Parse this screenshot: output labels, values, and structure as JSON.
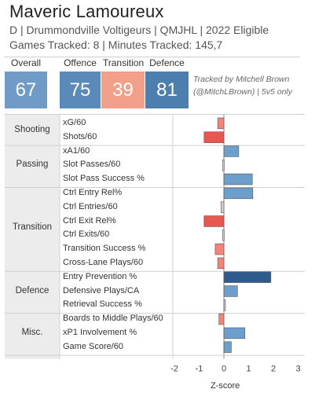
{
  "header": {
    "title": "Maveric Lamoureux",
    "subtitle": "D | Drummondville Voltigeurs | QMJHL | 2022 Eligible",
    "games_line": "Games Tracked: 8 | Minutes Tracked: 145,7"
  },
  "scores": {
    "overall": {
      "label": "Overall",
      "value": "67",
      "color": "#6f9bc6"
    },
    "offence": {
      "label": "Offence",
      "value": "75",
      "color": "#5a8ab8"
    },
    "transition": {
      "label": "Transition",
      "value": "39",
      "color": "#f3a08a"
    },
    "defence": {
      "label": "Defence",
      "value": "81",
      "color": "#4d7fae"
    }
  },
  "note": {
    "line1": "Tracked by Mitchell Brown",
    "line2": "(@MitchLBrown) | 5v5 only"
  },
  "chart_data": {
    "type": "bar",
    "orientation": "horizontal",
    "xlabel": "Z-score",
    "xlim": [
      -2.3,
      3.1
    ],
    "xticks": [
      "-2",
      "-1",
      "0",
      "1",
      "2",
      "3"
    ],
    "groups": [
      {
        "name": "Shooting",
        "metrics": [
          {
            "label": "xG/60",
            "value": -0.25
          },
          {
            "label": "Shots/60",
            "value": -0.8
          }
        ]
      },
      {
        "name": "Passing",
        "metrics": [
          {
            "label": "xA1/60",
            "value": 0.6
          },
          {
            "label": "Slot Passes/60",
            "value": -0.05
          },
          {
            "label": "Slot Pass Success %",
            "value": 1.15
          }
        ]
      },
      {
        "name": "Transition",
        "metrics": [
          {
            "label": "Ctrl Entry Rel%",
            "value": 1.17
          },
          {
            "label": "Ctrl Entries/60",
            "value": -0.12
          },
          {
            "label": "Ctrl Exit Rel%",
            "value": -0.8
          },
          {
            "label": "Ctrl Exits/60",
            "value": -0.05
          },
          {
            "label": "Transition Success %",
            "value": -0.35
          },
          {
            "label": "Cross-Lane Plays/60",
            "value": -0.25
          }
        ]
      },
      {
        "name": "Defence",
        "metrics": [
          {
            "label": "Entry Prevention %",
            "value": 1.9
          },
          {
            "label": "Defensive Plays/CA",
            "value": 0.55
          },
          {
            "label": "Retrieval Success %",
            "value": 0.05
          }
        ]
      },
      {
        "name": "Misc.",
        "metrics": [
          {
            "label": "Boards to Middle Plays/60",
            "value": -0.2
          },
          {
            "label": "xP1 Involvement %",
            "value": 0.85
          },
          {
            "label": "Game Score/60",
            "value": 0.3
          }
        ]
      }
    ]
  }
}
